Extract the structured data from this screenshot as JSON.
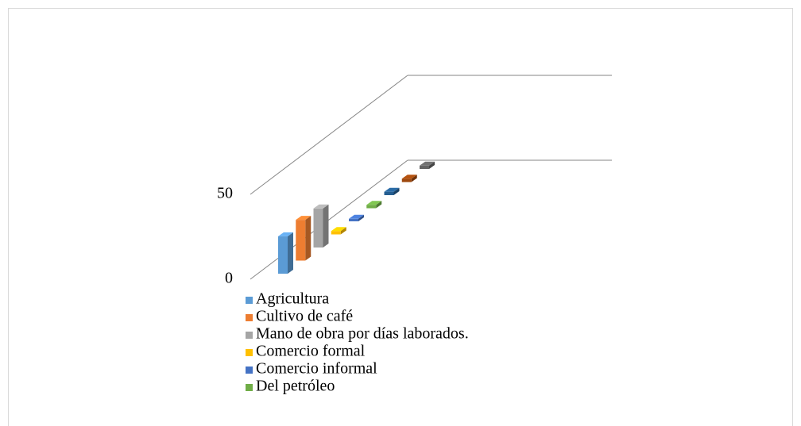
{
  "chart_data": {
    "type": "bar3d",
    "categories": [
      "Agricultura",
      "Cultivo de café",
      "Mano de obra por días laborados.",
      "Comercio formal",
      "Comercio informal",
      "Del petróleo",
      null,
      null,
      null
    ],
    "values": [
      22,
      24,
      23,
      2,
      1.5,
      2,
      2,
      2,
      2
    ],
    "colors": [
      "#5b9bd5",
      "#ed7d31",
      "#a5a5a5",
      "#ffc000",
      "#4472c4",
      "#70ad47",
      "#255e91",
      "#9e480e",
      "#636363"
    ],
    "ylim": [
      0,
      50
    ],
    "yticks": [
      0,
      50
    ]
  }
}
